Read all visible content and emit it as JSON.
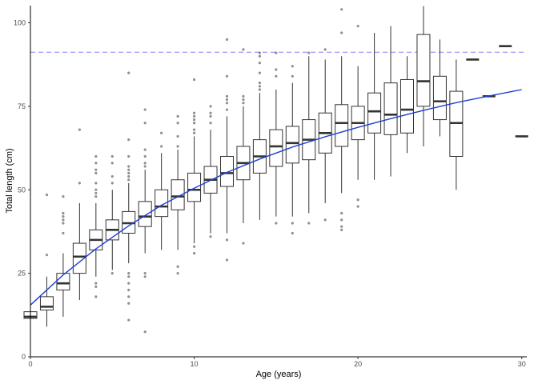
{
  "chart_data": {
    "type": "boxplot",
    "title": "",
    "xlabel": "Age (years)",
    "ylabel": "Total length (cm)",
    "xlim": [
      0,
      30
    ],
    "ylim": [
      0,
      105
    ],
    "x_ticks": [
      0,
      10,
      20,
      30
    ],
    "y_ticks": [
      0,
      25,
      50,
      75,
      100
    ],
    "grid": false,
    "colors": {
      "box": "#333333",
      "reference": "#8080ff",
      "fit": "#1f3fd4"
    },
    "reference_line": {
      "y": 91.2,
      "style": "dashed"
    },
    "fit_curve": {
      "x": [
        0,
        2,
        4,
        6,
        8,
        10,
        12,
        14,
        16,
        18,
        20,
        22,
        24,
        26,
        28,
        30
      ],
      "y": [
        15.5,
        24.5,
        32.3,
        39.2,
        45.4,
        50.5,
        55.2,
        59.2,
        62.8,
        65.9,
        68.7,
        71.3,
        73.8,
        76.1,
        78.1,
        80.0
      ]
    },
    "boxes": [
      {
        "age": 0,
        "q1": 11.5,
        "median": 12.0,
        "q3": 13.5,
        "low": 10.0,
        "high": 14.5,
        "outliers": []
      },
      {
        "age": 1,
        "q1": 14.0,
        "median": 15.0,
        "q3": 18.0,
        "low": 9.0,
        "high": 24.0,
        "outliers": [
          30.5,
          48.5
        ]
      },
      {
        "age": 2,
        "q1": 20.0,
        "median": 22.0,
        "q3": 25.0,
        "low": 12.0,
        "high": 31.0,
        "outliers": [
          37.0,
          40.0,
          41.0,
          42.0,
          43.0,
          48.0
        ]
      },
      {
        "age": 3,
        "q1": 25.0,
        "median": 30.0,
        "q3": 34.0,
        "low": 17.0,
        "high": 46.0,
        "outliers": [
          52.0,
          68.0
        ]
      },
      {
        "age": 4,
        "q1": 32.0,
        "median": 35.0,
        "q3": 38.0,
        "low": 24.0,
        "high": 46.0,
        "outliers": [
          18.0,
          21.0,
          22.0,
          48.0,
          49.0,
          50.0,
          52.0,
          55.0,
          56.0,
          58.0,
          60.0
        ]
      },
      {
        "age": 5,
        "q1": 35.0,
        "median": 38.0,
        "q3": 41.0,
        "low": 26.0,
        "high": 50.0,
        "outliers": [
          25.0,
          52.0,
          54.0,
          58.0,
          60.0
        ]
      },
      {
        "age": 6,
        "q1": 37.0,
        "median": 40.0,
        "q3": 43.5,
        "low": 28.0,
        "high": 52.0,
        "outliers": [
          11.0,
          16.0,
          18.0,
          20.0,
          22.0,
          24.0,
          25.0,
          53.0,
          54.0,
          55.0,
          56.0,
          57.0,
          60.0,
          65.0,
          85.0
        ]
      },
      {
        "age": 7,
        "q1": 39.0,
        "median": 42.0,
        "q3": 46.5,
        "low": 31.0,
        "high": 56.0,
        "outliers": [
          7.5,
          24.0,
          25.0,
          57.0,
          58.0,
          60.0,
          62.0,
          70.0,
          74.0
        ]
      },
      {
        "age": 8,
        "q1": 42.0,
        "median": 45.0,
        "q3": 50.0,
        "low": 32.0,
        "high": 61.0,
        "outliers": [
          63.0,
          67.0
        ]
      },
      {
        "age": 9,
        "q1": 44.0,
        "median": 48.0,
        "q3": 53.0,
        "low": 32.0,
        "high": 62.0,
        "outliers": [
          25.0,
          27.0,
          63.0,
          66.0,
          70.0,
          72.0
        ]
      },
      {
        "age": 10,
        "q1": 46.5,
        "median": 50.0,
        "q3": 55.0,
        "low": 34.0,
        "high": 66.0,
        "outliers": [
          31.0,
          33.0,
          67.0,
          68.0,
          70.0,
          71.0,
          72.0,
          73.0,
          83.0
        ]
      },
      {
        "age": 11,
        "q1": 49.0,
        "median": 53.0,
        "q3": 57.0,
        "low": 37.0,
        "high": 68.0,
        "outliers": [
          36.0,
          70.0,
          72.0,
          73.0,
          75.0
        ]
      },
      {
        "age": 12,
        "q1": 51.0,
        "median": 55.0,
        "q3": 60.0,
        "low": 37.0,
        "high": 72.0,
        "outliers": [
          29.0,
          35.0,
          74.0,
          76.0,
          77.0,
          78.0,
          84.0,
          95.0
        ]
      },
      {
        "age": 13,
        "q1": 53.0,
        "median": 58.0,
        "q3": 63.0,
        "low": 40.0,
        "high": 75.0,
        "outliers": [
          34.0,
          76.0,
          77.0,
          78.0,
          92.0
        ]
      },
      {
        "age": 14,
        "q1": 55.0,
        "median": 60.0,
        "q3": 65.0,
        "low": 41.0,
        "high": 79.0,
        "outliers": [
          80.0,
          81.0,
          82.0,
          85.0,
          88.0,
          90.0,
          91.0
        ]
      },
      {
        "age": 15,
        "q1": 57.0,
        "median": 63.0,
        "q3": 68.0,
        "low": 42.0,
        "high": 80.0,
        "outliers": [
          40.0,
          84.0,
          86.0,
          91.0
        ]
      },
      {
        "age": 16,
        "q1": 58.0,
        "median": 64.0,
        "q3": 69.0,
        "low": 42.0,
        "high": 82.0,
        "outliers": [
          37.0,
          40.0,
          84.0,
          87.0
        ]
      },
      {
        "age": 17,
        "q1": 59.0,
        "median": 65.0,
        "q3": 71.0,
        "low": 43.0,
        "high": 90.0,
        "outliers": [
          40.0,
          91.0
        ]
      },
      {
        "age": 18,
        "q1": 61.0,
        "median": 67.0,
        "q3": 73.0,
        "low": 46.0,
        "high": 89.0,
        "outliers": [
          41.0,
          92.0
        ]
      },
      {
        "age": 19,
        "q1": 63.0,
        "median": 70.0,
        "q3": 75.5,
        "low": 49.0,
        "high": 90.0,
        "outliers": [
          38.0,
          39.0,
          41.0,
          43.0,
          97.0,
          104.0
        ]
      },
      {
        "age": 20,
        "q1": 65.0,
        "median": 70.0,
        "q3": 75.0,
        "low": 53.0,
        "high": 87.0,
        "outliers": [
          45.0,
          47.0,
          99.0
        ]
      },
      {
        "age": 21,
        "q1": 67.0,
        "median": 73.5,
        "q3": 79.0,
        "low": 53.0,
        "high": 97.0,
        "outliers": []
      },
      {
        "age": 22,
        "q1": 66.5,
        "median": 72.5,
        "q3": 82.0,
        "low": 54.0,
        "high": 99.0,
        "outliers": []
      },
      {
        "age": 23,
        "q1": 67.0,
        "median": 74.0,
        "q3": 83.0,
        "low": 61.0,
        "high": 90.0,
        "outliers": []
      },
      {
        "age": 24,
        "q1": 75.0,
        "median": 82.5,
        "q3": 96.5,
        "low": 63.0,
        "high": 105.0,
        "outliers": []
      },
      {
        "age": 25,
        "q1": 71.0,
        "median": 76.5,
        "q3": 84.0,
        "low": 66.0,
        "high": 95.0,
        "outliers": []
      },
      {
        "age": 26,
        "q1": 60.0,
        "median": 70.0,
        "q3": 79.5,
        "low": 50.0,
        "high": 89.0,
        "outliers": []
      },
      {
        "age": 27,
        "q1": 89.0,
        "median": 89.0,
        "q3": 89.0,
        "low": 89.0,
        "high": 89.0,
        "outliers": []
      },
      {
        "age": 28,
        "q1": 78.0,
        "median": 78.0,
        "q3": 78.0,
        "low": 78.0,
        "high": 78.0,
        "outliers": []
      },
      {
        "age": 29,
        "q1": 93.0,
        "median": 93.0,
        "q3": 93.0,
        "low": 93.0,
        "high": 93.0,
        "outliers": []
      },
      {
        "age": 30,
        "q1": 66.0,
        "median": 66.0,
        "q3": 66.0,
        "low": 66.0,
        "high": 66.0,
        "outliers": []
      }
    ]
  }
}
